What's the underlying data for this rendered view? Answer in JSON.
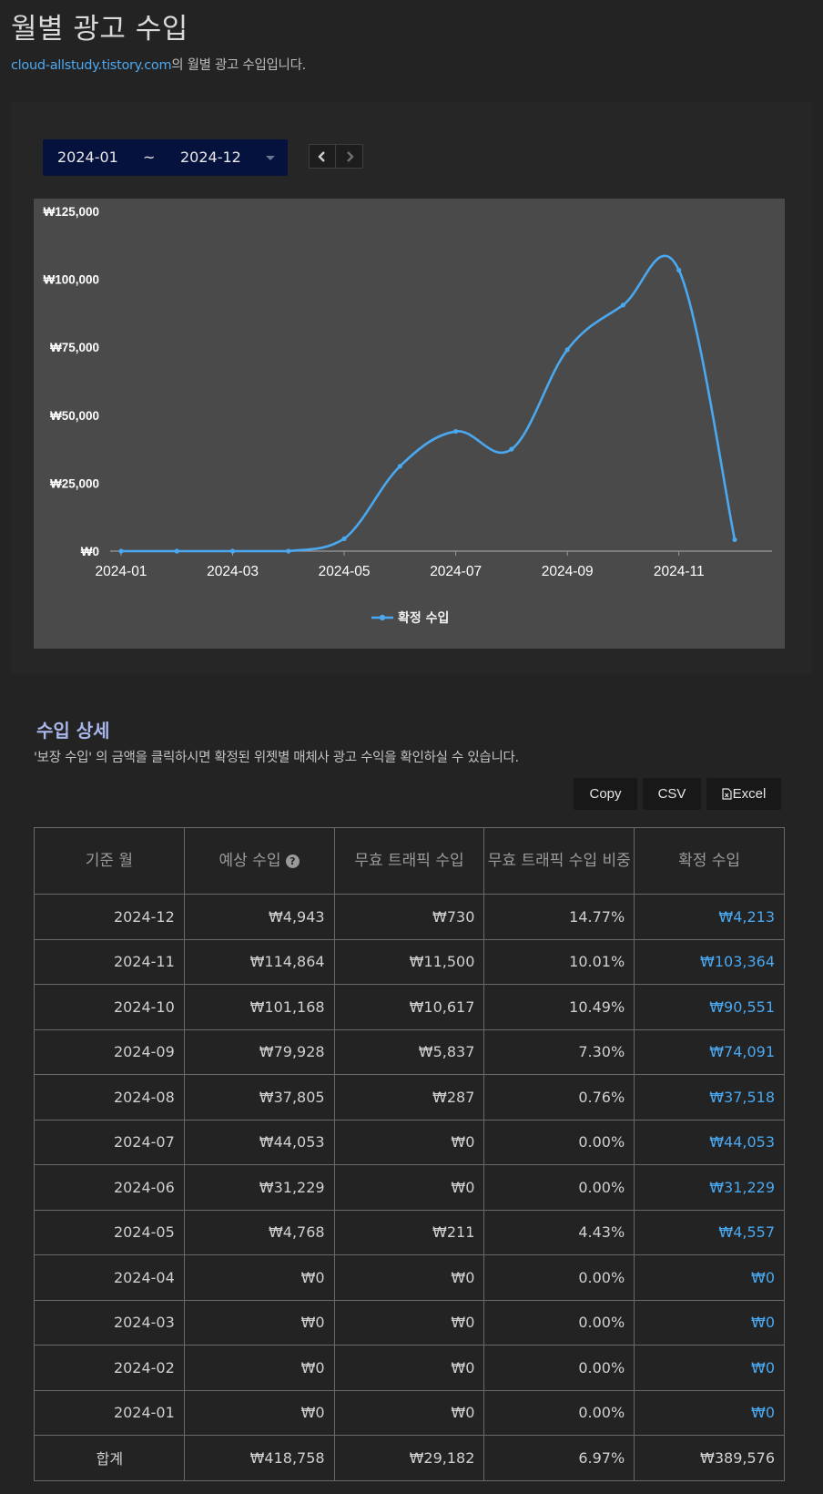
{
  "page": {
    "title": "월별 광고 수입",
    "blog_link": "cloud-allstudy.tistory.com",
    "subtitle_suffix": "의 월별 광고 수입입니다."
  },
  "period": {
    "from": "2024-01",
    "separator": "~",
    "to": "2024-12"
  },
  "chart_data": {
    "type": "line",
    "x": [
      "2024-01",
      "2024-02",
      "2024-03",
      "2024-04",
      "2024-05",
      "2024-06",
      "2024-07",
      "2024-08",
      "2024-09",
      "2024-10",
      "2024-11",
      "2024-12"
    ],
    "x_tick_labels": [
      "2024-01",
      "2024-03",
      "2024-05",
      "2024-07",
      "2024-09",
      "2024-11"
    ],
    "y_tick_labels": [
      "₩0",
      "₩25,000",
      "₩50,000",
      "₩75,000",
      "₩100,000",
      "₩125,000"
    ],
    "ylim": [
      0,
      125000
    ],
    "series": [
      {
        "name": "확정 수입",
        "values": [
          0,
          0,
          0,
          0,
          4557,
          31229,
          44053,
          37518,
          74091,
          90551,
          103364,
          4213
        ],
        "color": "#4aa8f0"
      }
    ],
    "legend_position": "bottom-center",
    "grid": false
  },
  "detail": {
    "title": "수입 상세",
    "description": "'보장 수입' 의 금액을 클릭하시면 확정된 위젯별 매체사 광고 수익을 확인하실 수 있습니다.",
    "buttons": {
      "copy": "Copy",
      "csv": "CSV",
      "excel": "Excel"
    },
    "columns": {
      "month": "기준 월",
      "expected": "예상 수입",
      "invalid": "무효 트래픽 수입",
      "ratio": "무효 트래픽 수입 비중",
      "confirmed": "확정 수입"
    },
    "rows": [
      {
        "month": "2024-12",
        "expected": "₩4,943",
        "invalid": "₩730",
        "ratio": "14.77%",
        "confirmed": "₩4,213"
      },
      {
        "month": "2024-11",
        "expected": "₩114,864",
        "invalid": "₩11,500",
        "ratio": "10.01%",
        "confirmed": "₩103,364"
      },
      {
        "month": "2024-10",
        "expected": "₩101,168",
        "invalid": "₩10,617",
        "ratio": "10.49%",
        "confirmed": "₩90,551"
      },
      {
        "month": "2024-09",
        "expected": "₩79,928",
        "invalid": "₩5,837",
        "ratio": "7.30%",
        "confirmed": "₩74,091"
      },
      {
        "month": "2024-08",
        "expected": "₩37,805",
        "invalid": "₩287",
        "ratio": "0.76%",
        "confirmed": "₩37,518"
      },
      {
        "month": "2024-07",
        "expected": "₩44,053",
        "invalid": "₩0",
        "ratio": "0.00%",
        "confirmed": "₩44,053"
      },
      {
        "month": "2024-06",
        "expected": "₩31,229",
        "invalid": "₩0",
        "ratio": "0.00%",
        "confirmed": "₩31,229"
      },
      {
        "month": "2024-05",
        "expected": "₩4,768",
        "invalid": "₩211",
        "ratio": "4.43%",
        "confirmed": "₩4,557"
      },
      {
        "month": "2024-04",
        "expected": "₩0",
        "invalid": "₩0",
        "ratio": "0.00%",
        "confirmed": "₩0"
      },
      {
        "month": "2024-03",
        "expected": "₩0",
        "invalid": "₩0",
        "ratio": "0.00%",
        "confirmed": "₩0"
      },
      {
        "month": "2024-02",
        "expected": "₩0",
        "invalid": "₩0",
        "ratio": "0.00%",
        "confirmed": "₩0"
      },
      {
        "month": "2024-01",
        "expected": "₩0",
        "invalid": "₩0",
        "ratio": "0.00%",
        "confirmed": "₩0"
      }
    ],
    "total": {
      "label": "합계",
      "expected": "₩418,758",
      "invalid": "₩29,182",
      "ratio": "6.97%",
      "confirmed": "₩389,576"
    }
  },
  "icons": {
    "help": "question-circle-icon",
    "prev": "chevron-left-icon",
    "next": "chevron-right-icon",
    "excel": "file-excel-icon",
    "dropdown": "caret-down-icon"
  },
  "colors": {
    "background": "#232323",
    "chart_background": "#4a4a4a",
    "accent": "#4aa8f0",
    "period_select": "#05123d",
    "section_title": "#a9b6ea"
  }
}
